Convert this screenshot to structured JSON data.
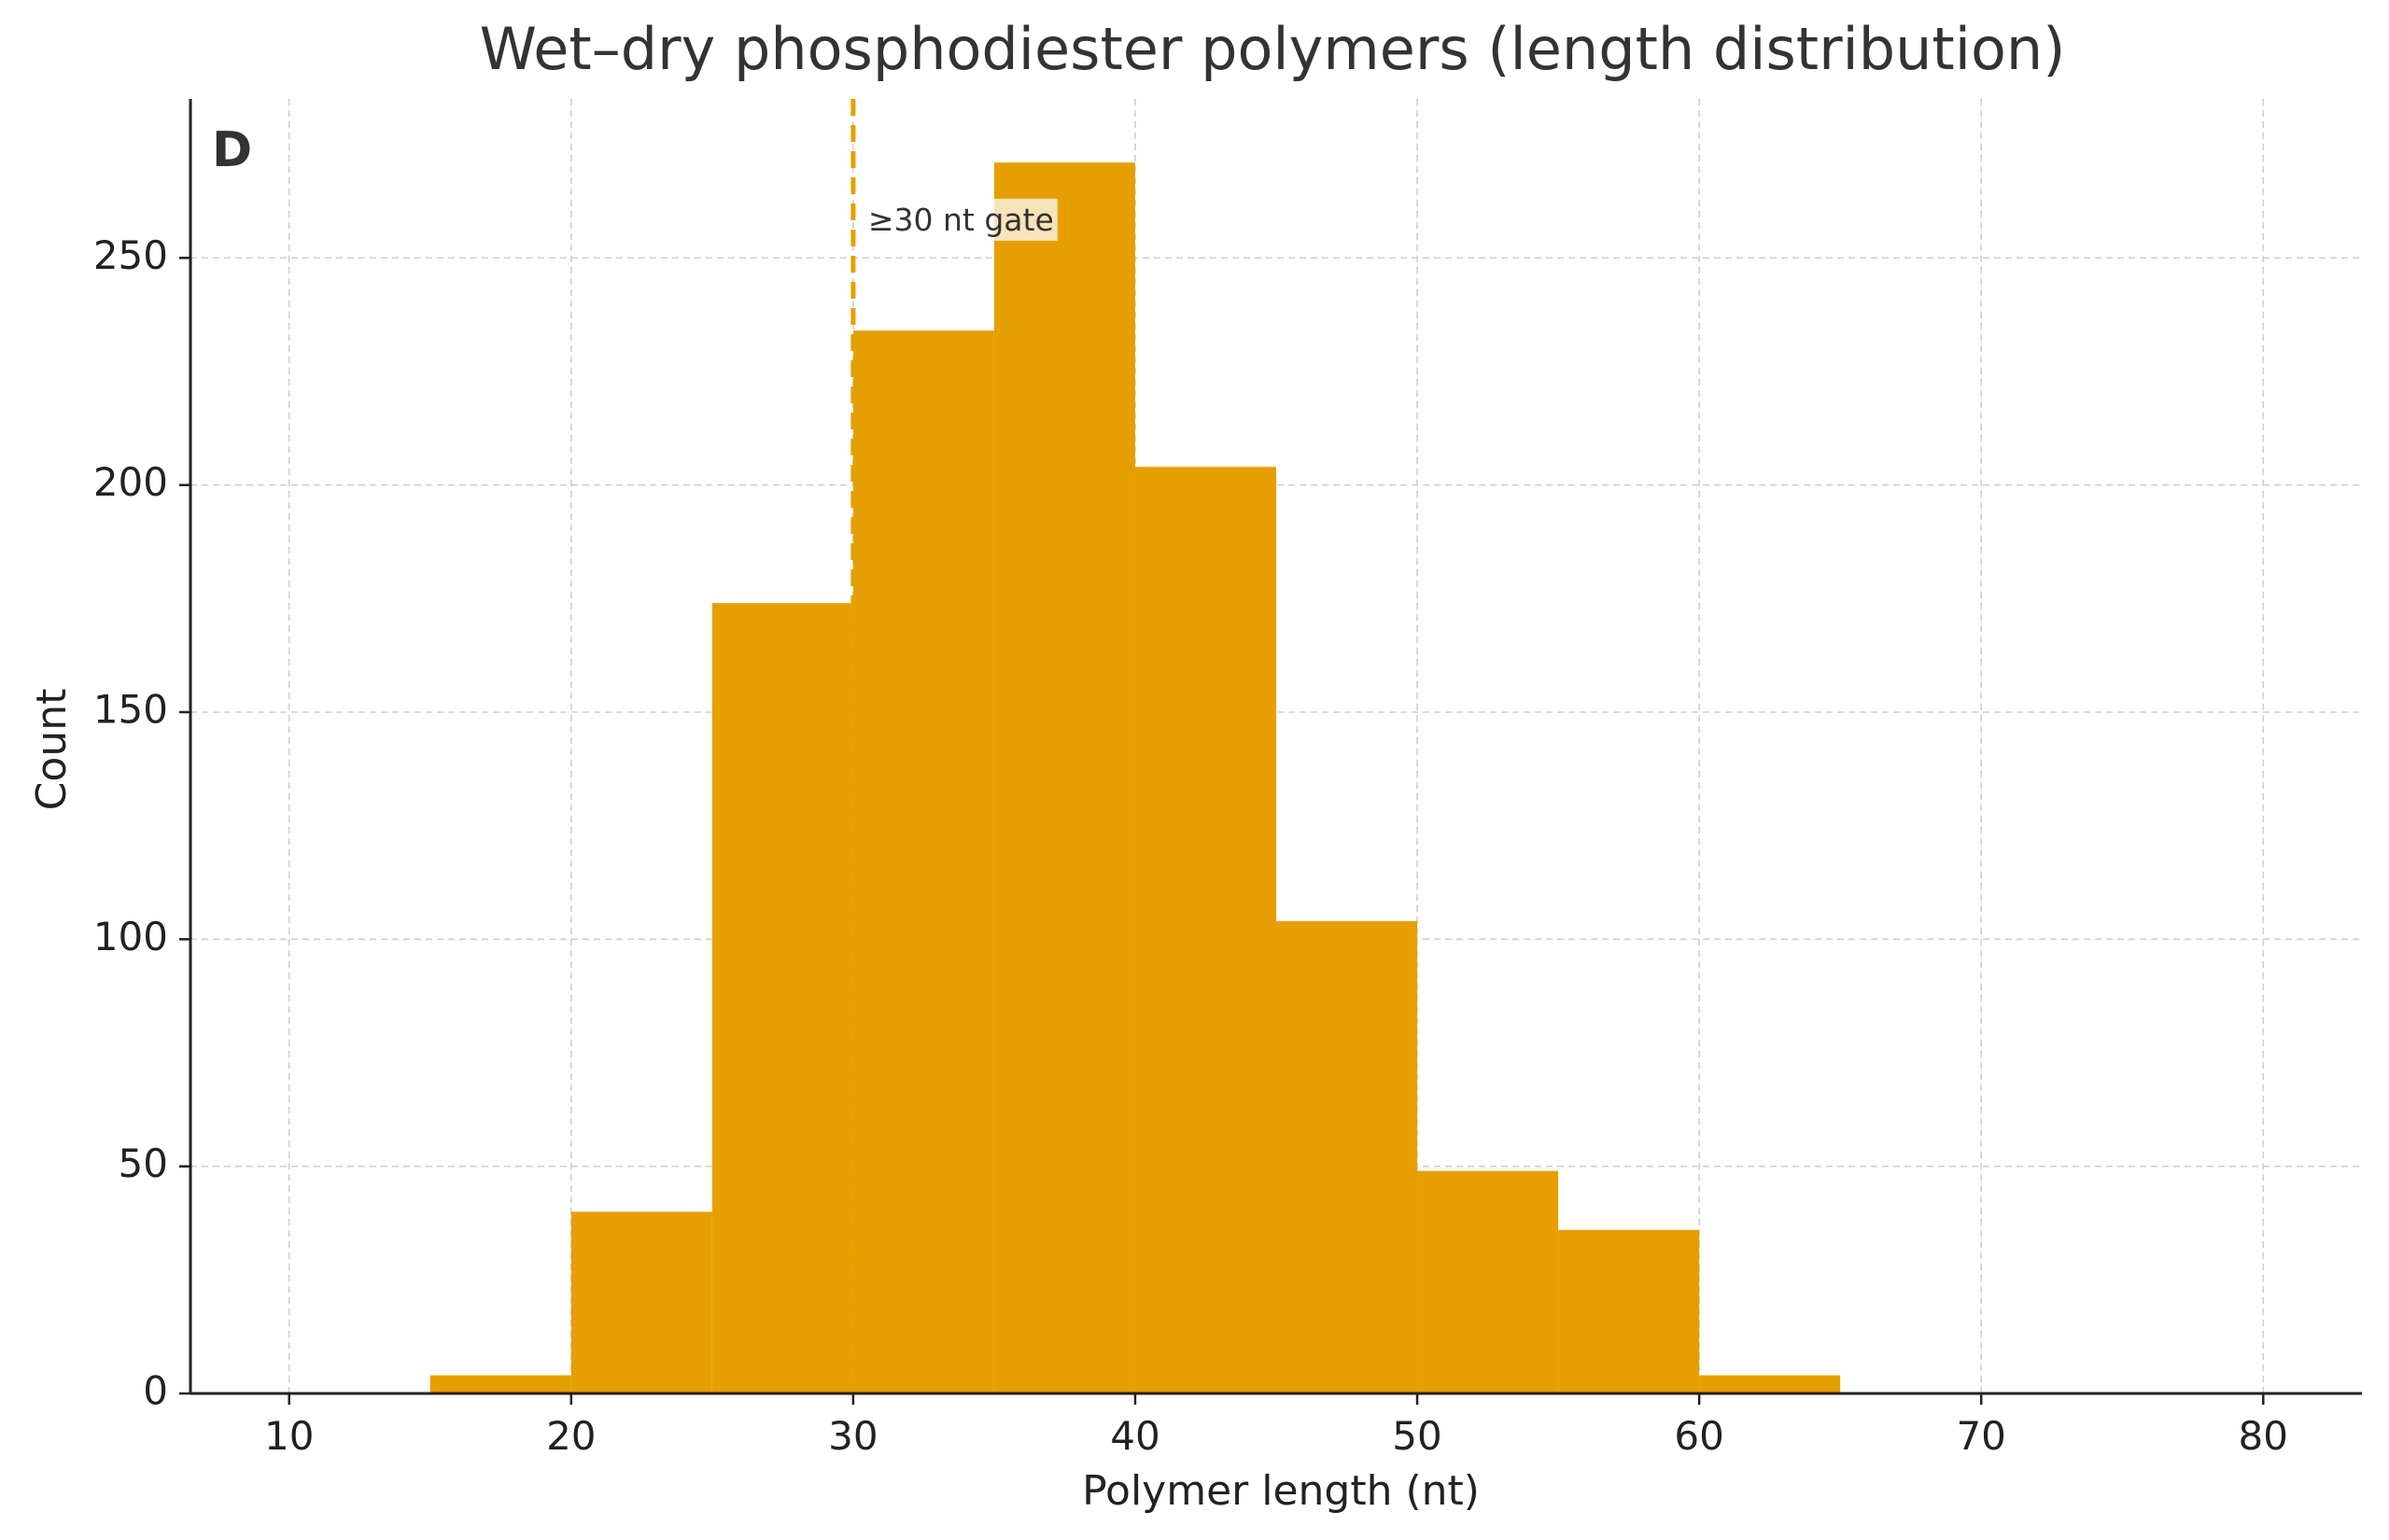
{
  "chart_data": {
    "type": "bar",
    "title": "Wet–dry phosphodiester polymers (length distribution)",
    "panel_label": "D",
    "xlabel": "Polymer length (nt)",
    "ylabel": "Count",
    "xlim": [
      6.5,
      83.5
    ],
    "ylim": [
      0,
      285
    ],
    "xticks": [
      10,
      20,
      30,
      40,
      50,
      60,
      70,
      80
    ],
    "yticks": [
      0,
      50,
      100,
      150,
      200,
      250
    ],
    "grid": true,
    "bar_color": "#E69F00",
    "bins": [
      {
        "start": 15,
        "end": 20,
        "count": 4
      },
      {
        "start": 20,
        "end": 25,
        "count": 40
      },
      {
        "start": 25,
        "end": 30,
        "count": 174
      },
      {
        "start": 30,
        "end": 35,
        "count": 234
      },
      {
        "start": 35,
        "end": 40,
        "count": 271
      },
      {
        "start": 40,
        "end": 45,
        "count": 204
      },
      {
        "start": 45,
        "end": 50,
        "count": 104
      },
      {
        "start": 50,
        "end": 55,
        "count": 49
      },
      {
        "start": 55,
        "end": 60,
        "count": 36
      },
      {
        "start": 60,
        "end": 65,
        "count": 4
      }
    ],
    "threshold": {
      "x": 30,
      "label": "≥30 nt gate",
      "color": "#E69F00"
    }
  }
}
